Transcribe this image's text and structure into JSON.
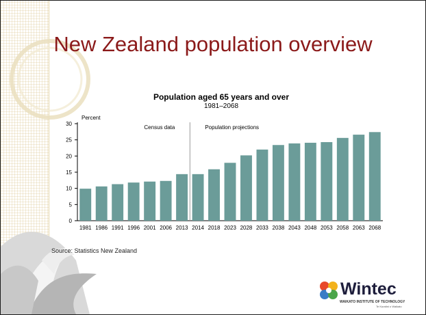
{
  "slide": {
    "title": "New Zealand population overview",
    "source": "Source: Statistics New Zealand"
  },
  "logo": {
    "name": "Wintec",
    "subtitle": "WAIKATO INSTITUTE OF TECHNOLOGY",
    "tagline": "Te Kuratini o Waikato"
  },
  "colors": {
    "title": "#8b1a1a",
    "bar": "#6b9c99",
    "divider": "#999999"
  },
  "chart_data": {
    "type": "bar",
    "title": "Population aged 65 years and over",
    "subtitle": "1981–2068",
    "ylabel": "Percent",
    "xlabel": "",
    "ylim": [
      0,
      30
    ],
    "yticks": [
      0,
      5,
      10,
      15,
      20,
      25,
      30
    ],
    "grid": false,
    "categories": [
      "1981",
      "1986",
      "1991",
      "1996",
      "2001",
      "2006",
      "2013",
      "2014",
      "2018",
      "2023",
      "2028",
      "2033",
      "2038",
      "2043",
      "2048",
      "2053",
      "2058",
      "2063",
      "2068"
    ],
    "values": [
      9.9,
      10.6,
      11.3,
      11.8,
      12.1,
      12.3,
      14.4,
      14.4,
      15.9,
      17.9,
      20.2,
      22.0,
      23.4,
      23.9,
      24.1,
      24.3,
      25.6,
      26.6,
      27.4
    ],
    "annotations": [
      {
        "text": "Census data",
        "range": [
          "1981",
          "2013"
        ]
      },
      {
        "text": "Population projections",
        "range": [
          "2014",
          "2068"
        ]
      }
    ],
    "divider_after": "2013"
  }
}
